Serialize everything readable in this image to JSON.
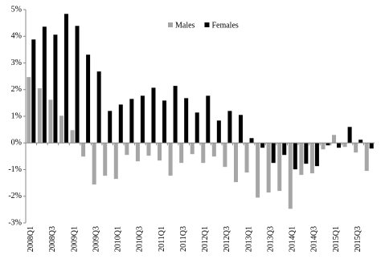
{
  "chart_data": {
    "type": "bar",
    "categories": [
      "2008Q1",
      null,
      "2008Q3",
      null,
      "2009Q1",
      null,
      "2009Q3",
      null,
      "2010Q1",
      null,
      "2010Q3",
      null,
      "2011Q1",
      null,
      "2011Q3",
      null,
      "2012Q1",
      null,
      "2012Q3",
      null,
      "2013Q1",
      null,
      "2013Q3",
      null,
      "2014Q1",
      null,
      "2014Q3",
      null,
      "2015Q1",
      null,
      "2015Q3",
      null
    ],
    "series": [
      {
        "name": "Males",
        "color": "#a6a6a6",
        "values": [
          2.47,
          2.05,
          1.62,
          1.02,
          0.48,
          -0.51,
          -1.56,
          -1.23,
          -1.35,
          -0.45,
          -0.69,
          -0.48,
          -0.66,
          -1.23,
          -0.75,
          -0.42,
          -0.75,
          -0.51,
          -0.9,
          -1.47,
          -1.11,
          -2.05,
          -1.86,
          -1.8,
          -2.47,
          -1.2,
          -1.14,
          -0.24,
          0.3,
          -0.15,
          -0.36,
          -1.05
        ]
      },
      {
        "name": "Females",
        "color": "#000000",
        "values": [
          3.88,
          4.36,
          4.06,
          4.84,
          4.39,
          3.31,
          2.68,
          1.2,
          1.44,
          1.65,
          1.77,
          2.07,
          1.59,
          2.14,
          1.68,
          1.14,
          1.77,
          0.84,
          1.2,
          1.05,
          0.18,
          -0.18,
          -0.75,
          -0.45,
          -0.99,
          -0.78,
          -0.87,
          -0.09,
          -0.18,
          0.6,
          0.12,
          -0.21
        ]
      }
    ],
    "ylim": [
      -3,
      5
    ],
    "yticks": [
      {
        "value": -3,
        "label": "-3%"
      },
      {
        "value": -2,
        "label": "-2%"
      },
      {
        "value": -1,
        "label": "-1%"
      },
      {
        "value": 0,
        "label": "0%"
      },
      {
        "value": 1,
        "label": "1%"
      },
      {
        "value": 2,
        "label": "2%"
      },
      {
        "value": 3,
        "label": "3%"
      },
      {
        "value": 4,
        "label": "4%"
      },
      {
        "value": 5,
        "label": "5%"
      }
    ],
    "grid": false,
    "legend": "top-center"
  }
}
